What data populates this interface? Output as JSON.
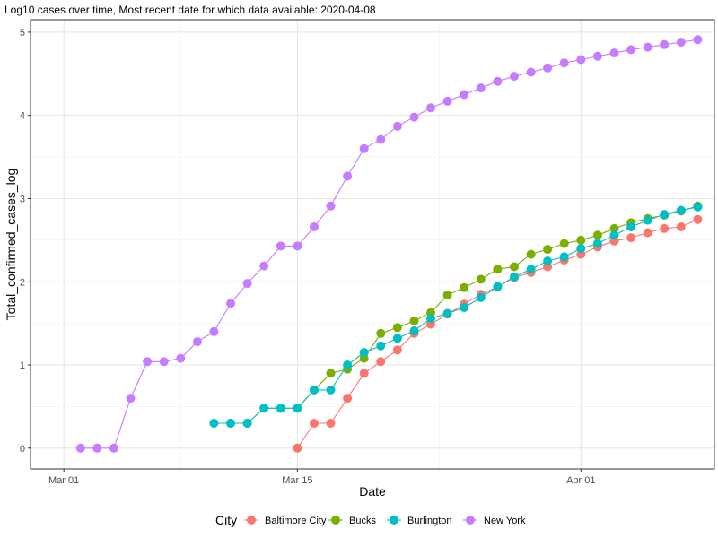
{
  "chart_data": {
    "type": "line",
    "title": "Log10 cases over time, Most recent date for which data available: 2020-04-08",
    "xlabel": "Date",
    "ylabel": "Total_confirmed_cases_log",
    "x_ticks": [
      "2020-03-01",
      "2020-03-15",
      "2020-04-01"
    ],
    "x_tick_labels": [
      "Mar 01",
      "Mar 15",
      "Apr 01"
    ],
    "xlim": [
      "2020-02-28",
      "2020-04-09"
    ],
    "y_ticks": [
      0,
      1,
      2,
      3,
      4,
      5
    ],
    "ylim": [
      -0.25,
      5.15
    ],
    "grid": true,
    "markers": "circle",
    "legend": {
      "title": "City",
      "position": "bottom"
    },
    "series": [
      {
        "name": "Baltimore City",
        "color": "#F8766D",
        "start": "2020-03-15",
        "values": [
          0.0,
          0.3,
          0.3,
          0.6,
          0.9,
          1.04,
          1.18,
          1.38,
          1.49,
          1.61,
          1.73,
          1.85,
          1.94,
          2.05,
          2.11,
          2.18,
          2.26,
          2.33,
          2.42,
          2.49,
          2.53,
          2.59,
          2.64,
          2.66,
          2.75
        ]
      },
      {
        "name": "Bucks",
        "color": "#7CAE00",
        "start": "2020-03-11",
        "values": [
          0.3,
          0.3,
          0.48,
          0.48,
          0.48,
          0.7,
          0.9,
          0.95,
          1.08,
          1.38,
          1.45,
          1.53,
          1.63,
          1.84,
          1.93,
          2.03,
          2.15,
          2.18,
          2.33,
          2.39,
          2.46,
          2.5,
          2.56,
          2.64,
          2.71,
          2.76,
          2.8,
          2.85,
          2.91
        ]
      },
      {
        "name": "Burlington",
        "color": "#00BFC4",
        "start": "2020-03-10",
        "values": [
          0.3,
          0.3,
          0.3,
          0.48,
          0.48,
          0.48,
          0.7,
          0.7,
          1.0,
          1.15,
          1.23,
          1.32,
          1.41,
          1.56,
          1.62,
          1.69,
          1.81,
          1.94,
          2.06,
          2.15,
          2.25,
          2.3,
          2.4,
          2.46,
          2.56,
          2.66,
          2.74,
          2.81,
          2.86,
          2.9
        ]
      },
      {
        "name": "New York",
        "color": "#C77CFF",
        "start": "2020-03-02",
        "values": [
          0.0,
          0.0,
          0.0,
          0.6,
          1.04,
          1.04,
          1.08,
          1.28,
          1.4,
          1.74,
          1.98,
          2.19,
          2.43,
          2.43,
          2.66,
          2.91,
          3.27,
          3.6,
          3.71,
          3.87,
          3.98,
          4.09,
          4.17,
          4.25,
          4.33,
          4.41,
          4.47,
          4.52,
          4.57,
          4.63,
          4.67,
          4.71,
          4.75,
          4.79,
          4.82,
          4.85,
          4.88,
          4.91
        ]
      }
    ]
  }
}
